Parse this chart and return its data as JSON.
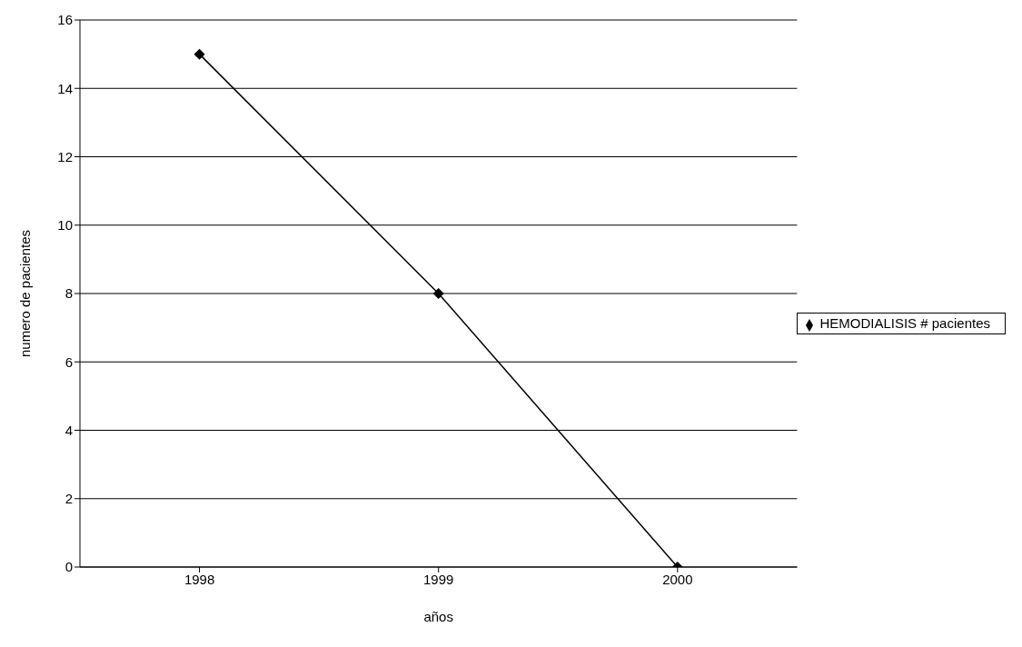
{
  "chart_data": {
    "type": "line",
    "xlabel": "años",
    "ylabel": "numero de pacientes",
    "categories": [
      "1998",
      "1999",
      "2000"
    ],
    "series": [
      {
        "name": "HEMODIALISIS # pacientes",
        "color": "#000000",
        "values": [
          15,
          8,
          0
        ]
      }
    ],
    "ylim": [
      0,
      16
    ],
    "yticks": [
      0,
      2,
      4,
      6,
      8,
      10,
      12,
      14,
      16
    ],
    "grid": "y",
    "legend": "right",
    "marker": "diamond",
    "line_style": "solid"
  }
}
